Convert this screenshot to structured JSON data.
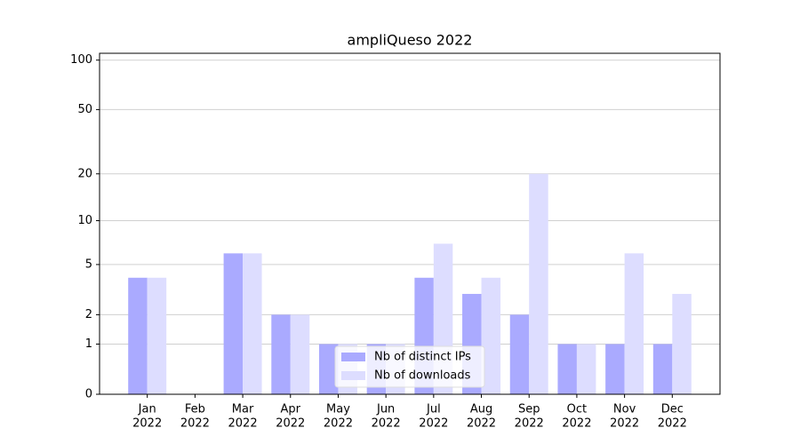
{
  "chart_data": {
    "type": "bar",
    "title": "ampliQueso 2022",
    "categories": [
      [
        "Jan",
        "2022"
      ],
      [
        "Feb",
        "2022"
      ],
      [
        "Mar",
        "2022"
      ],
      [
        "Apr",
        "2022"
      ],
      [
        "May",
        "2022"
      ],
      [
        "Jun",
        "2022"
      ],
      [
        "Jul",
        "2022"
      ],
      [
        "Aug",
        "2022"
      ],
      [
        "Sep",
        "2022"
      ],
      [
        "Oct",
        "2022"
      ],
      [
        "Nov",
        "2022"
      ],
      [
        "Dec",
        "2022"
      ]
    ],
    "series": [
      {
        "name": "Nb of distinct IPs",
        "color": "#aaaaff",
        "values": [
          4,
          0,
          6,
          2,
          1,
          1,
          4,
          3,
          2,
          1,
          1,
          1
        ]
      },
      {
        "name": "Nb of downloads",
        "color": "#ddddff",
        "values": [
          4,
          0,
          6,
          2,
          1,
          1,
          7,
          4,
          20,
          1,
          6,
          3
        ]
      }
    ],
    "yscale": "log1p",
    "ylim": [
      0,
      110
    ],
    "yticks": [
      0,
      1,
      2,
      5,
      10,
      20,
      50,
      100
    ],
    "grid": true,
    "legend": "lower center"
  }
}
